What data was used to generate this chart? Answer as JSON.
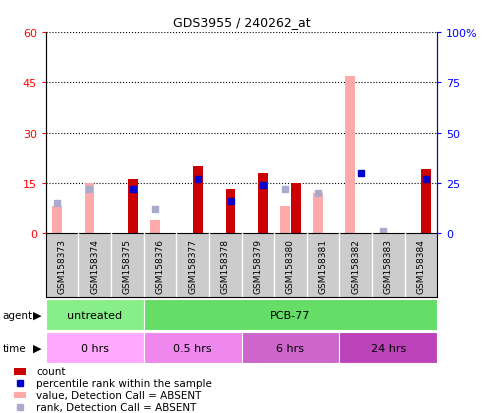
{
  "title": "GDS3955 / 240262_at",
  "samples": [
    "GSM158373",
    "GSM158374",
    "GSM158375",
    "GSM158376",
    "GSM158377",
    "GSM158378",
    "GSM158379",
    "GSM158380",
    "GSM158381",
    "GSM158382",
    "GSM158383",
    "GSM158384"
  ],
  "count_values": [
    0,
    0,
    16,
    0,
    20,
    13,
    18,
    15,
    0,
    0,
    0,
    19
  ],
  "value_absent": [
    8,
    15,
    0,
    4,
    0,
    0,
    0,
    8,
    12,
    47,
    0,
    0
  ],
  "rank_values": [
    0,
    0,
    22,
    0,
    27,
    16,
    24,
    0,
    0,
    30,
    0,
    27
  ],
  "rank_absent_val": [
    15,
    22,
    0,
    12,
    0,
    0,
    0,
    22,
    20,
    0,
    1,
    0
  ],
  "ylim": [
    0,
    60
  ],
  "y2lim": [
    0,
    100
  ],
  "yticks": [
    0,
    15,
    30,
    45,
    60
  ],
  "y2ticks": [
    0,
    25,
    50,
    75,
    100
  ],
  "ytick_labels": [
    "0",
    "15",
    "30",
    "45",
    "60"
  ],
  "y2tick_labels": [
    "0",
    "25",
    "50",
    "75",
    "100%"
  ],
  "color_count": "#cc0000",
  "color_rank": "#0000cc",
  "color_value_absent": "#ffaaaa",
  "color_rank_absent": "#aaaacc",
  "agent_groups": [
    {
      "label": "untreated",
      "start": 0,
      "end": 3,
      "color": "#88ee88"
    },
    {
      "label": "PCB-77",
      "start": 3,
      "end": 12,
      "color": "#66dd66"
    }
  ],
  "time_groups": [
    {
      "label": "0 hrs",
      "start": 0,
      "end": 3,
      "color": "#ffaaff"
    },
    {
      "label": "0.5 hrs",
      "start": 3,
      "end": 6,
      "color": "#ee88ee"
    },
    {
      "label": "6 hrs",
      "start": 6,
      "end": 9,
      "color": "#dd66dd"
    },
    {
      "label": "24 hrs",
      "start": 9,
      "end": 12,
      "color": "#cc44cc"
    }
  ],
  "legend_items": [
    {
      "label": "count",
      "color": "#cc0000",
      "type": "bar"
    },
    {
      "label": "percentile rank within the sample",
      "color": "#0000cc",
      "type": "square"
    },
    {
      "label": "value, Detection Call = ABSENT",
      "color": "#ffaaaa",
      "type": "bar"
    },
    {
      "label": "rank, Detection Call = ABSENT",
      "color": "#aaaacc",
      "type": "square"
    }
  ],
  "bar_width": 0.3,
  "fig_bg": "#ffffff",
  "plot_bg": "#ffffff",
  "gray_bg": "#cccccc"
}
